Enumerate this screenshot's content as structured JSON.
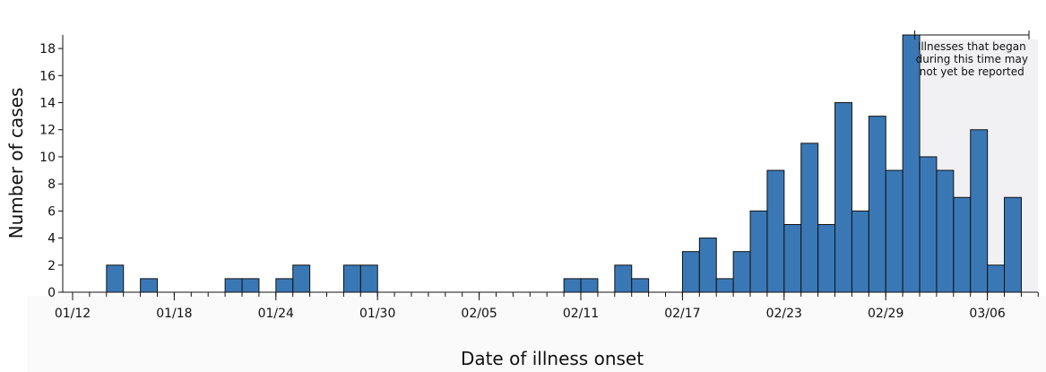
{
  "chart_data": {
    "type": "bar",
    "title": "",
    "xlabel": "Date of illness onset",
    "ylabel": "Number of cases",
    "ylim": [
      0,
      19
    ],
    "y_ticks": [
      0,
      2,
      4,
      6,
      8,
      10,
      12,
      14,
      16,
      18
    ],
    "x_ticks": [
      {
        "date": "01/12",
        "label": "01/12"
      },
      {
        "date": "01/18",
        "label": "01/18"
      },
      {
        "date": "01/24",
        "label": "01/24"
      },
      {
        "date": "01/30",
        "label": "01/30"
      },
      {
        "date": "02/05",
        "label": "02/05"
      },
      {
        "date": "02/11",
        "label": "02/11"
      },
      {
        "date": "02/17",
        "label": "02/17"
      },
      {
        "date": "02/23",
        "label": "02/23"
      },
      {
        "date": "02/29",
        "label": "02/29"
      },
      {
        "date": "03/06",
        "label": "03/06"
      }
    ],
    "x_range": [
      "01/11",
      "03/09"
    ],
    "bar_color": "#3a78b5",
    "shade_color": "#f1f1f3",
    "bars": [
      {
        "date": "01/14",
        "value": 2
      },
      {
        "date": "01/16",
        "value": 1
      },
      {
        "date": "01/21",
        "value": 1
      },
      {
        "date": "01/22",
        "value": 1
      },
      {
        "date": "01/24",
        "value": 1
      },
      {
        "date": "01/25",
        "value": 2
      },
      {
        "date": "01/28",
        "value": 2
      },
      {
        "date": "01/29",
        "value": 2
      },
      {
        "date": "02/10",
        "value": 1
      },
      {
        "date": "02/11",
        "value": 1
      },
      {
        "date": "02/13",
        "value": 2
      },
      {
        "date": "02/14",
        "value": 1
      },
      {
        "date": "02/17",
        "value": 3
      },
      {
        "date": "02/18",
        "value": 4
      },
      {
        "date": "02/19",
        "value": 1
      },
      {
        "date": "02/20",
        "value": 3
      },
      {
        "date": "02/21",
        "value": 6
      },
      {
        "date": "02/22",
        "value": 9
      },
      {
        "date": "02/23",
        "value": 5
      },
      {
        "date": "02/24",
        "value": 11
      },
      {
        "date": "02/25",
        "value": 5
      },
      {
        "date": "02/26",
        "value": 14
      },
      {
        "date": "02/27",
        "value": 6
      },
      {
        "date": "02/28",
        "value": 13
      },
      {
        "date": "02/29",
        "value": 9
      },
      {
        "date": "03/01",
        "value": 19
      },
      {
        "date": "03/02",
        "value": 10
      },
      {
        "date": "03/03",
        "value": 9
      },
      {
        "date": "03/04",
        "value": 7
      },
      {
        "date": "03/05",
        "value": 12
      },
      {
        "date": "03/06",
        "value": 2
      },
      {
        "date": "03/07",
        "value": 7
      }
    ],
    "annotation": {
      "lines": [
        "Illnesses that began",
        "during this time may",
        "not yet be reported"
      ],
      "start_date": "03/02",
      "end_date": "03/08"
    }
  }
}
